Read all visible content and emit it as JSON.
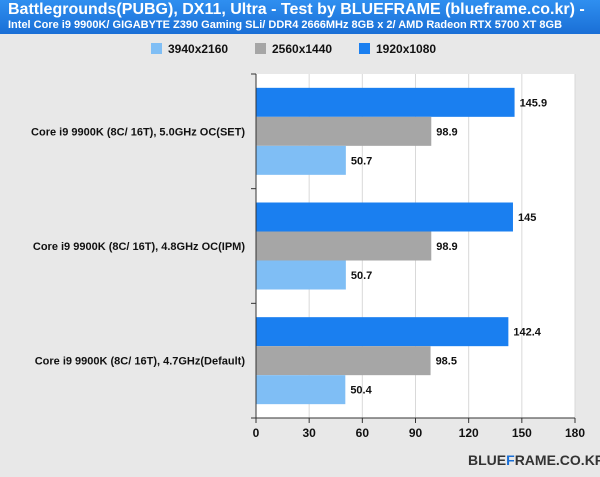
{
  "chart_data": {
    "type": "bar",
    "orientation": "horizontal",
    "title": "Battlegrounds(PUBG), DX11, Ultra - Test by BLUEFRAME (blueframe.co.kr) -",
    "subtitle": "Intel Core i9 9900K/ GIGABYTE Z390 Gaming SLi/ DDR4 2666MHz 8GB x 2/ AMD Radeon RTX 5700 XT 8GB",
    "categories": [
      "Core i9 9900K (8C/ 16T), 5.0GHz OC(SET)",
      "Core i9 9900K (8C/ 16T), 4.8GHz OC(IPM)",
      "Core i9 9900K (8C/ 16T), 4.7GHz(Default)"
    ],
    "series": [
      {
        "name": "3940x2160",
        "color": "#7fbef5",
        "values": [
          50.7,
          50.7,
          50.4
        ],
        "labels": [
          "50.7",
          "50.7",
          "50.4"
        ]
      },
      {
        "name": "2560x1440",
        "color": "#a6a6a6",
        "values": [
          98.9,
          98.9,
          98.5
        ],
        "labels": [
          "98.9",
          "98.9",
          "98.5"
        ]
      },
      {
        "name": "1920x1080",
        "color": "#1a7ff0",
        "values": [
          145.9,
          145,
          142.4
        ],
        "labels": [
          "145.9",
          "145",
          "142.4"
        ]
      }
    ],
    "xlim": [
      0,
      180
    ],
    "xticks": [
      0,
      30,
      60,
      90,
      120,
      150,
      180
    ],
    "tick_labels": [
      "0",
      "30",
      "60",
      "90",
      "120",
      "150",
      "180"
    ],
    "grid": true,
    "legend_position": "top"
  },
  "brand": {
    "part1": "BLUE",
    "part2": "F",
    "part3": "RAME.CO.KR"
  }
}
